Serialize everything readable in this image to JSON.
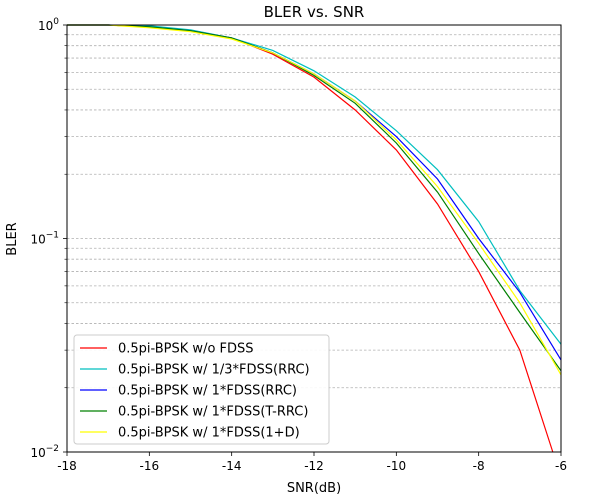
{
  "chart_data": {
    "type": "line",
    "title": "BLER vs. SNR",
    "xlabel": "SNR(dB)",
    "ylabel": "BLER",
    "xlim": [
      -18,
      -6
    ],
    "ylim": [
      0.01,
      1
    ],
    "yscale": "log",
    "grid": "horizontal dashed (major and minor)",
    "legend_position": "lower-left",
    "x_ticks": [
      {
        "value": -18,
        "label": "-18"
      },
      {
        "value": -16,
        "label": "-16"
      },
      {
        "value": -14,
        "label": "-14"
      },
      {
        "value": -12,
        "label": "-12"
      },
      {
        "value": -10,
        "label": "-10"
      },
      {
        "value": -8,
        "label": "-8"
      },
      {
        "value": -6,
        "label": "-6"
      }
    ],
    "y_ticks": [
      {
        "value": 1,
        "base": "10",
        "exp": "0"
      },
      {
        "value": 0.1,
        "base": "10",
        "exp": "−1"
      },
      {
        "value": 0.01,
        "base": "10",
        "exp": "−2"
      }
    ],
    "series": [
      {
        "name": "0.5pi-BPSK w/o FDSS",
        "color": "#ff0000",
        "points": [
          [
            -18,
            1.0
          ],
          [
            -17,
            1.0
          ],
          [
            -16,
            0.98
          ],
          [
            -15,
            0.94
          ],
          [
            -14,
            0.87
          ],
          [
            -13,
            0.73
          ],
          [
            -12,
            0.57
          ],
          [
            -11,
            0.4
          ],
          [
            -10,
            0.26
          ],
          [
            -9,
            0.145
          ],
          [
            -8,
            0.07
          ],
          [
            -7,
            0.03
          ],
          [
            -6.2,
            0.01
          ]
        ]
      },
      {
        "name": "0.5pi-BPSK w/ 1/3*FDSS(RRC)",
        "color": "#00bfbf",
        "points": [
          [
            -18,
            1.0
          ],
          [
            -17,
            1.0
          ],
          [
            -16,
            0.99
          ],
          [
            -15,
            0.95
          ],
          [
            -14,
            0.87
          ],
          [
            -13,
            0.76
          ],
          [
            -12,
            0.61
          ],
          [
            -11,
            0.46
          ],
          [
            -10,
            0.32
          ],
          [
            -9,
            0.21
          ],
          [
            -8,
            0.12
          ],
          [
            -7,
            0.057
          ],
          [
            -6,
            0.032
          ]
        ]
      },
      {
        "name": "0.5pi-BPSK w/ 1*FDSS(RRC)",
        "color": "#0000ff",
        "points": [
          [
            -18,
            1.0
          ],
          [
            -17,
            1.0
          ],
          [
            -16,
            0.98
          ],
          [
            -15,
            0.94
          ],
          [
            -14,
            0.87
          ],
          [
            -13,
            0.74
          ],
          [
            -12,
            0.59
          ],
          [
            -11,
            0.44
          ],
          [
            -10,
            0.3
          ],
          [
            -9,
            0.19
          ],
          [
            -8,
            0.1
          ],
          [
            -7,
            0.056
          ],
          [
            -6,
            0.027
          ]
        ]
      },
      {
        "name": "0.5pi-BPSK w/ 1*FDSS(T-RRC)",
        "color": "#008000",
        "points": [
          [
            -18,
            1.0
          ],
          [
            -17,
            1.0
          ],
          [
            -16,
            0.98
          ],
          [
            -15,
            0.94
          ],
          [
            -14,
            0.87
          ],
          [
            -13,
            0.74
          ],
          [
            -12,
            0.58
          ],
          [
            -11,
            0.43
          ],
          [
            -10,
            0.28
          ],
          [
            -9,
            0.165
          ],
          [
            -8,
            0.085
          ],
          [
            -7,
            0.045
          ],
          [
            -6,
            0.024
          ]
        ]
      },
      {
        "name": "0.5pi-BPSK w/ 1*FDSS(1+D)",
        "color": "#ffff00",
        "points": [
          [
            -18,
            1.0
          ],
          [
            -17,
            1.0
          ],
          [
            -16,
            0.97
          ],
          [
            -15,
            0.93
          ],
          [
            -14,
            0.86
          ],
          [
            -13,
            0.74
          ],
          [
            -12,
            0.59
          ],
          [
            -11,
            0.44
          ],
          [
            -10,
            0.29
          ],
          [
            -9,
            0.175
          ],
          [
            -8,
            0.095
          ],
          [
            -7,
            0.05
          ],
          [
            -6,
            0.023
          ]
        ]
      }
    ]
  }
}
